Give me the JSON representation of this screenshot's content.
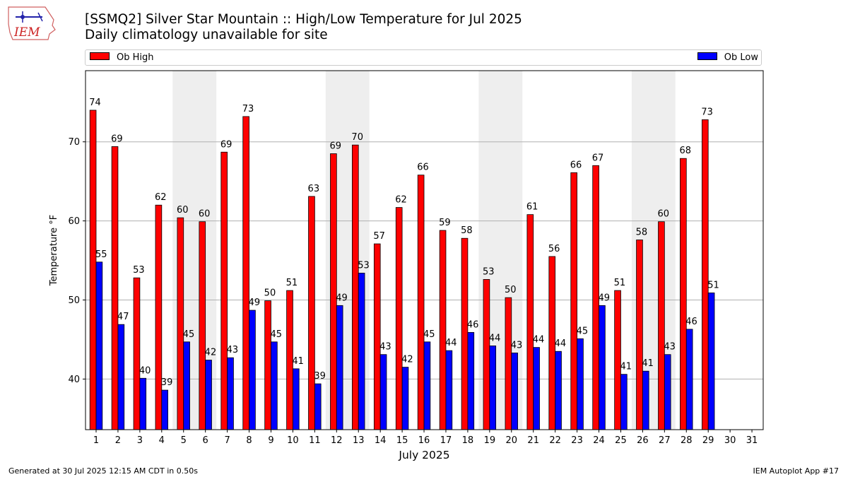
{
  "header": {
    "title_line1": "[SSMQ2] Silver Star Mountain :: High/Low Temperature for Jul 2025",
    "title_line2": "Daily climatology unavailable for site",
    "logo_text": "IEM"
  },
  "footer": {
    "generated": "Generated at 30 Jul 2025 12:15 AM CDT in 0.50s",
    "app": "IEM Autoplot App #17"
  },
  "colors": {
    "high": "#ff0000",
    "low": "#0000ff",
    "weekend_band": "#eeeeee",
    "grid": "#b0b0b0"
  },
  "chart_data": {
    "type": "bar",
    "xlabel": "July 2025",
    "ylabel": "Temperature °F",
    "ylim": [
      33.6,
      79
    ],
    "yticks": [
      40,
      50,
      60,
      70
    ],
    "categories": [
      "1",
      "2",
      "3",
      "4",
      "5",
      "6",
      "7",
      "8",
      "9",
      "10",
      "11",
      "12",
      "13",
      "14",
      "15",
      "16",
      "17",
      "18",
      "19",
      "20",
      "21",
      "22",
      "23",
      "24",
      "25",
      "26",
      "27",
      "28",
      "29",
      "30",
      "31"
    ],
    "grid": "horizontal",
    "legend_placement": "top, outside plot",
    "weekend_bands": [
      [
        "5",
        "6"
      ],
      [
        "12",
        "13"
      ],
      [
        "19",
        "20"
      ],
      [
        "26",
        "27"
      ]
    ],
    "series": [
      {
        "name": "Ob High",
        "color": "#ff0000",
        "values": [
          74,
          69.4,
          52.8,
          62,
          60.4,
          59.9,
          68.7,
          73.2,
          49.9,
          51.2,
          63.1,
          68.5,
          69.6,
          57.1,
          61.7,
          65.8,
          58.8,
          57.8,
          52.6,
          50.3,
          60.8,
          55.5,
          66.1,
          67,
          51.2,
          57.6,
          59.9,
          67.9,
          72.8,
          null,
          null
        ],
        "labels": [
          "74",
          "69",
          "53",
          "62",
          "60",
          "60",
          "69",
          "73",
          "50",
          "51",
          "63",
          "69",
          "70",
          "57",
          "62",
          "66",
          "59",
          "58",
          "53",
          "50",
          "61",
          "56",
          "66",
          "67",
          "51",
          "58",
          "60",
          "68",
          "73",
          "",
          ""
        ]
      },
      {
        "name": "Ob Low",
        "color": "#0000ff",
        "values": [
          54.8,
          46.9,
          40.1,
          38.6,
          44.7,
          42.4,
          42.7,
          48.7,
          44.7,
          41.3,
          39.4,
          49.3,
          53.4,
          43.1,
          41.5,
          44.7,
          43.6,
          45.9,
          44.2,
          43.3,
          44,
          43.5,
          45.1,
          49.3,
          40.6,
          41,
          43.1,
          46.3,
          50.9,
          null,
          null
        ],
        "labels": [
          "55",
          "47",
          "40",
          "39",
          "45",
          "42",
          "43",
          "49",
          "45",
          "41",
          "39",
          "49",
          "53",
          "43",
          "42",
          "45",
          "44",
          "46",
          "44",
          "43",
          "44",
          "44",
          "45",
          "49",
          "41",
          "41",
          "43",
          "46",
          "51",
          "",
          ""
        ]
      }
    ]
  }
}
